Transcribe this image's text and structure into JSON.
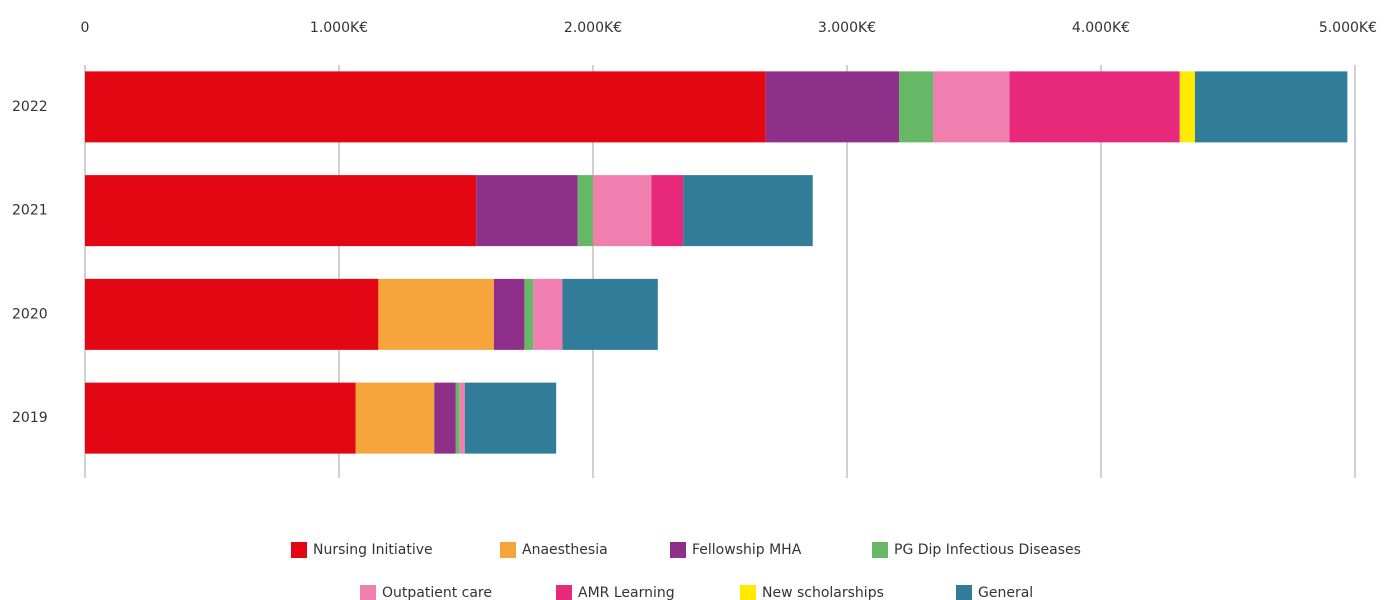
{
  "chart_data": {
    "type": "stacked-bar-horizontal",
    "categories": [
      "2022",
      "2021",
      "2020",
      "2019"
    ],
    "series": [
      {
        "name": "Nursing Initiative",
        "color": "#e30613",
        "values": [
          2680,
          1540,
          1155,
          1065
        ]
      },
      {
        "name": "Anaesthesia",
        "color": "#f6a43c",
        "values": [
          0,
          0,
          455,
          310
        ]
      },
      {
        "name": "Fellowship MHA",
        "color": "#8e308a",
        "values": [
          525,
          400,
          120,
          85
        ]
      },
      {
        "name": "PG Dip Infectious Diseases",
        "color": "#66b867",
        "values": [
          135,
          60,
          35,
          15
        ]
      },
      {
        "name": "Outpatient care",
        "color": "#f07fb0",
        "values": [
          300,
          230,
          115,
          20
        ]
      },
      {
        "name": "AMR Learning",
        "color": "#e8287a",
        "values": [
          670,
          125,
          0,
          0
        ]
      },
      {
        "name": "New scholarships",
        "color": "#ffea00",
        "values": [
          60,
          0,
          0,
          0
        ]
      },
      {
        "name": "General",
        "color": "#317c99",
        "values": [
          600,
          510,
          375,
          360
        ]
      }
    ],
    "xlim": [
      0,
      5000
    ],
    "xticks": [
      0,
      {
        "value": 1000,
        "label": "1.000K€"
      },
      {
        "value": 2000,
        "label": "2.000K€"
      },
      {
        "value": 3000,
        "label": "3.000K€"
      },
      {
        "value": 4000,
        "label": "4.000K€"
      },
      {
        "value": 5000,
        "label": "5.000K€"
      }
    ],
    "grid": true
  }
}
